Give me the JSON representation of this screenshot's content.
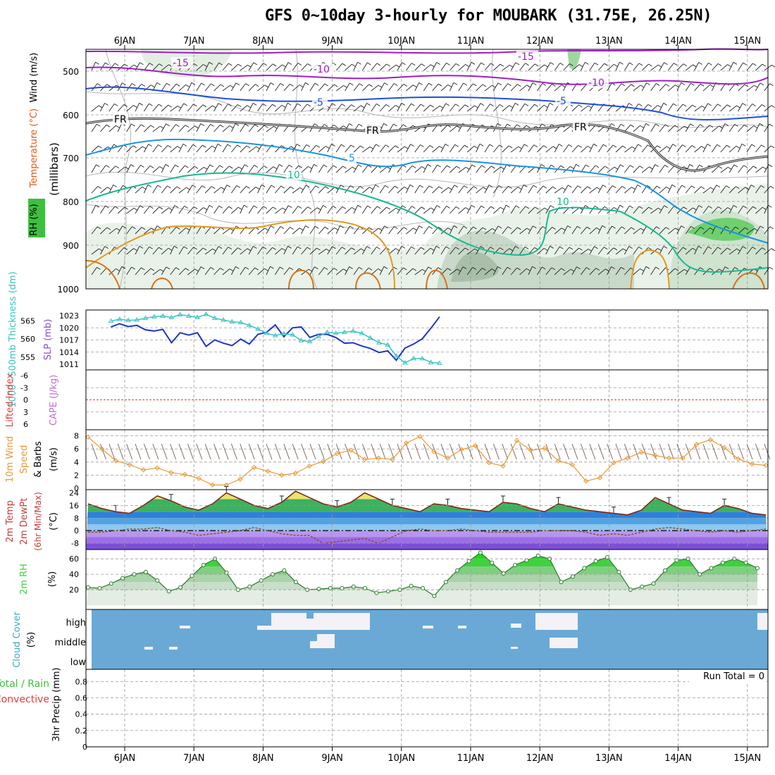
{
  "title": "GFS 0~10day 3-hourly for MOUBARK (31.75E, 26.25N)",
  "x_tick_labels": [
    "6JAN",
    "7JAN",
    "8JAN",
    "9JAN",
    "10JAN",
    "11JAN",
    "12JAN",
    "13JAN",
    "14JAN",
    "15JAN"
  ],
  "run_total": "Run Total = 0",
  "colors": {
    "purple": "#9c1fbf",
    "blue": "#1f4fd8",
    "lightblue": "#1a95e0",
    "teal": "#17b890",
    "orange": "#e09a20",
    "cyan": "#3cc2c2",
    "slp": "#1f35c8",
    "wind": "#e69a3c",
    "rhgreen": "#3fd13f",
    "cloud": "#6aa9d6",
    "temp": "#7a2a1a"
  },
  "panels": {
    "upper": {
      "ylabel_lines": [
        "(millibars)"
      ],
      "side_labels": [
        "Wind (m/s)",
        "Temperature (°C)",
        "RH (%)"
      ],
      "y_ticks": [
        "500",
        "600",
        "700",
        "800",
        "900",
        "1000"
      ],
      "contour_labels": [
        "-15",
        "-15",
        "-10",
        "-10",
        "-5",
        "-5",
        "FR",
        "FR",
        "FR",
        "5",
        "10",
        "10"
      ]
    },
    "slp": {
      "left_label": "1000~500mb Thickness (dm)",
      "right_label": "SLP (mb)",
      "left_ticks": [
        "565",
        "560",
        "555"
      ],
      "right_ticks": [
        "1023",
        "1020",
        "1017",
        "1014",
        "1011"
      ]
    },
    "li": {
      "left_label": "Lifted Index",
      "right_label": "CAPE (J/kg)",
      "ticks": [
        "-6",
        "-3",
        "0",
        "3",
        "6"
      ]
    },
    "wind": {
      "labels": [
        "10m Wind",
        "Speed",
        "& Barbs",
        "(m/s)"
      ],
      "ticks": [
        "8",
        "6",
        "4",
        "2",
        "0"
      ]
    },
    "temp": {
      "labels": [
        "2m Temp",
        "2m DewPt",
        "(6hr Min/Max)",
        "(°C)"
      ],
      "ticks": [
        "24",
        "16",
        "8",
        "0",
        "-8"
      ]
    },
    "rh": {
      "labels": [
        "2m RH",
        "(%)"
      ],
      "ticks": [
        "60",
        "40",
        "20"
      ]
    },
    "cloud": {
      "labels": [
        "Cloud Cover",
        "(%)"
      ],
      "levels": [
        "high",
        "middle",
        "low"
      ]
    },
    "precip": {
      "labels": [
        "Total / Rain",
        "Convective",
        "3hr Precip (mm)"
      ],
      "ticks": [
        "0.8",
        "0.6",
        "0.4",
        "0.2",
        "0"
      ]
    }
  },
  "chart_data": [
    {
      "type": "line",
      "title": "SLP (mb) and 1000~500mb Thickness (dm)",
      "x": [
        "5JAN 18Z",
        "6JAN 00Z",
        "6JAN 06Z",
        "6JAN 12Z",
        "6JAN 18Z",
        "7JAN 00Z",
        "7JAN 06Z",
        "7JAN 12Z",
        "7JAN 18Z",
        "8JAN 00Z",
        "8JAN 06Z",
        "8JAN 12Z",
        "8JAN 18Z",
        "9JAN 00Z",
        "9JAN 06Z",
        "9JAN 12Z",
        "9JAN 18Z",
        "10JAN 00Z",
        "10JAN 06Z",
        "10JAN 12Z",
        "10JAN 18Z",
        "11JAN 00Z",
        "11JAN 06Z",
        "11JAN 12Z",
        "11JAN 18Z",
        "12JAN 00Z",
        "12JAN 06Z",
        "12JAN 12Z",
        "12JAN 18Z",
        "13JAN 00Z",
        "13JAN 06Z",
        "13JAN 12Z",
        "13JAN 18Z",
        "14JAN 00Z",
        "14JAN 06Z",
        "14JAN 12Z",
        "14JAN 18Z",
        "15JAN 00Z",
        "15JAN 06Z"
      ],
      "series": [
        {
          "name": "SLP (mb)",
          "values": [
            1020.2,
            1021.0,
            1020.3,
            1020.6,
            1019.5,
            1019.2,
            1019.6,
            1016.3,
            1018.8,
            1018.2,
            1018.8,
            1015.4,
            1017.0,
            1016.2,
            1015.6,
            1017.2,
            1016.0,
            1018.4,
            1018.9,
            1020.7,
            1017.8,
            1020.0,
            1020.2,
            1017.6,
            1018.4,
            1018.4,
            1017.6,
            1016.2,
            1016.3,
            1015.5,
            1014.9,
            1013.9,
            1014.3,
            1012.0,
            1015.0,
            1016.0,
            1017.3,
            1019.9,
            1022.7
          ]
        },
        {
          "name": "1000~500mb Thickness (dm)",
          "values": [
            565.0,
            565.5,
            565.2,
            565.3,
            565.8,
            566.2,
            566.4,
            566.0,
            566.8,
            566.4,
            566.0,
            566.9,
            565.8,
            565.3,
            564.8,
            564.6,
            563.8,
            562.8,
            561.6,
            561.0,
            561.5,
            561.2,
            559.6,
            559.3,
            560.7,
            561.9,
            561.6,
            561.9,
            562.2,
            561.6,
            560.3,
            559.0,
            558.4,
            555.3,
            553.4,
            554.6,
            554.6,
            553.5,
            553.3
          ]
        }
      ]
    },
    {
      "type": "line",
      "title": "10m Wind Speed (m/s)",
      "x_range": [
        "5JAN 18Z",
        "15JAN 06Z"
      ],
      "series": [
        {
          "name": "10m Wind Speed",
          "values": [
            7.8,
            6.0,
            4.2,
            3.6,
            2.8,
            3.1,
            2.4,
            2.1,
            1.5,
            0.5,
            0.5,
            1.4,
            3.2,
            2.6,
            2.0,
            2.3,
            3.4,
            4.1,
            5.3,
            5.8,
            4.4,
            4.6,
            4.4,
            6.9,
            7.9,
            5.6,
            4.6,
            5.9,
            6.5,
            3.9,
            3.4,
            7.3,
            5.8,
            6.1,
            4.2,
            3.6,
            1.1,
            1.6,
            3.9,
            4.6,
            5.5,
            5.0,
            4.6,
            4.6,
            6.7,
            7.4,
            6.2,
            4.5,
            3.7,
            3.5
          ]
        }
      ]
    },
    {
      "type": "line",
      "title": "2m Temp / 2m DewPt (°C)",
      "x_range": [
        "5JAN 18Z",
        "15JAN 06Z"
      ],
      "series": [
        {
          "name": "2m Temp",
          "values": [
            17,
            14,
            12,
            11,
            16,
            22,
            19,
            15,
            13,
            17,
            24,
            20,
            16,
            14,
            18,
            25,
            21,
            17,
            15,
            18,
            24,
            20,
            16,
            14,
            12,
            17,
            16,
            14,
            13,
            12,
            18,
            17,
            14,
            12,
            17,
            15,
            13,
            12,
            11,
            10,
            13,
            21,
            17,
            13,
            12,
            11,
            16,
            14,
            11,
            10
          ]
        },
        {
          "name": "2m DewPt",
          "values": [
            -1,
            -1,
            0,
            1,
            1,
            2,
            0,
            -1,
            -3,
            -2,
            -1,
            0,
            2,
            0,
            -2,
            -3,
            -3,
            -8,
            -7,
            -6,
            -5,
            -8,
            -4,
            0,
            1,
            0,
            0,
            1,
            0,
            -1,
            -1,
            -1,
            -1,
            0,
            0,
            0,
            -1,
            -3,
            -2,
            -3,
            -1,
            1,
            2,
            1,
            0,
            -1,
            0,
            -1,
            0,
            1
          ]
        }
      ]
    },
    {
      "type": "area",
      "title": "2m RH (%)",
      "x_range": [
        "5JAN 18Z",
        "15JAN 06Z"
      ],
      "series": [
        {
          "name": "2m RH",
          "values": [
            23,
            22,
            28,
            35,
            40,
            43,
            32,
            18,
            23,
            38,
            52,
            60,
            42,
            20,
            24,
            32,
            40,
            45,
            30,
            20,
            21,
            22,
            22,
            24,
            22,
            16,
            18,
            20,
            25,
            22,
            12,
            30,
            45,
            57,
            68,
            55,
            41,
            52,
            58,
            64,
            60,
            30,
            37,
            48,
            57,
            62,
            43,
            20,
            24,
            28,
            45,
            58,
            60,
            40,
            48,
            55,
            60,
            55,
            48
          ]
        }
      ]
    },
    {
      "type": "bar",
      "title": "3hr Precip (mm)",
      "ylim": [
        0,
        0.9
      ],
      "values": []
    }
  ]
}
